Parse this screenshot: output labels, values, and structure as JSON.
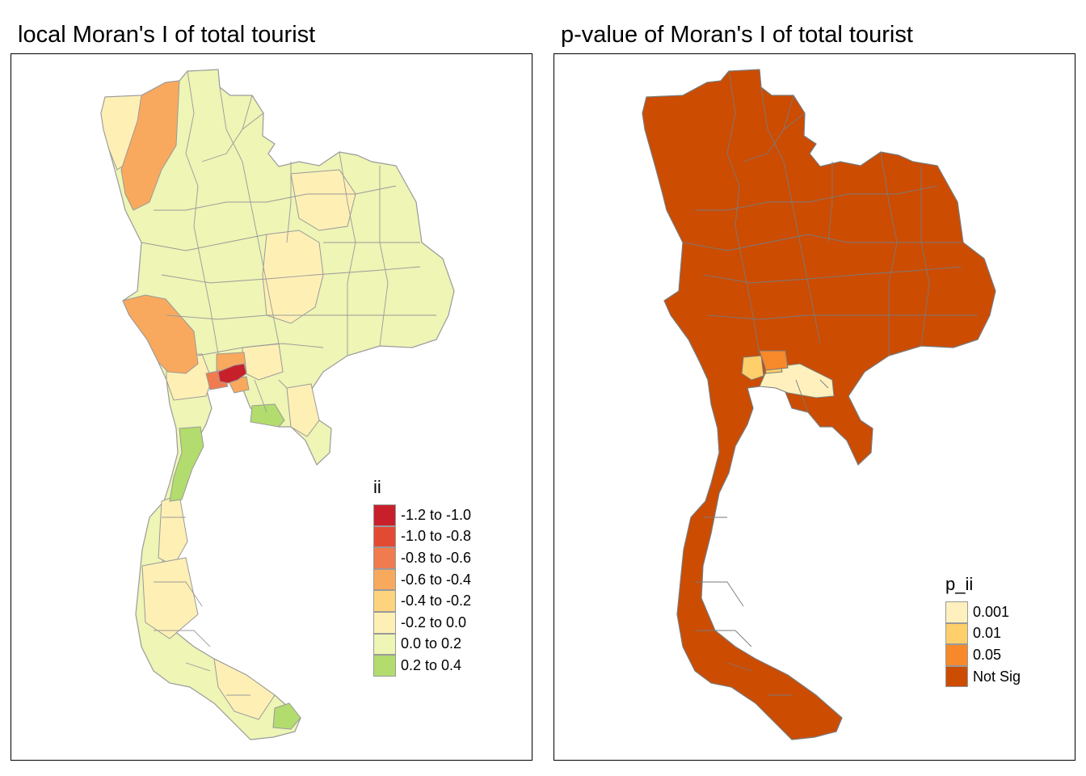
{
  "maps": [
    {
      "title": "local Moran's I of total tourist",
      "legend": {
        "title": "ii",
        "items": [
          {
            "label": "-1.2 to -1.0",
            "color": "#c8202a"
          },
          {
            "label": "-1.0 to -0.8",
            "color": "#e34a33"
          },
          {
            "label": "-0.8 to -0.6",
            "color": "#f07b4e"
          },
          {
            "label": "-0.6 to -0.4",
            "color": "#f9a95d"
          },
          {
            "label": "-0.4 to -0.2",
            "color": "#fdd37e"
          },
          {
            "label": "-0.2 to 0.0",
            "color": "#fef0b5"
          },
          {
            "label": "0.0 to 0.2",
            "color": "#eef5b5"
          },
          {
            "label": "0.2 to 0.4",
            "color": "#b2dc6e"
          }
        ]
      }
    },
    {
      "title": "p-value of Moran's I of total tourist",
      "legend": {
        "title": "p_ii",
        "items": [
          {
            "label": "0.001",
            "color": "#fff0bd"
          },
          {
            "label": "0.01",
            "color": "#fecf6a"
          },
          {
            "label": "0.05",
            "color": "#f7892a"
          },
          {
            "label": "Not Sig",
            "color": "#cc4c02"
          }
        ]
      }
    }
  ],
  "colors": {
    "border_left": "#9a9a9a",
    "border_right": "#7a7a7a",
    "not_sig": "#cc4c02"
  }
}
